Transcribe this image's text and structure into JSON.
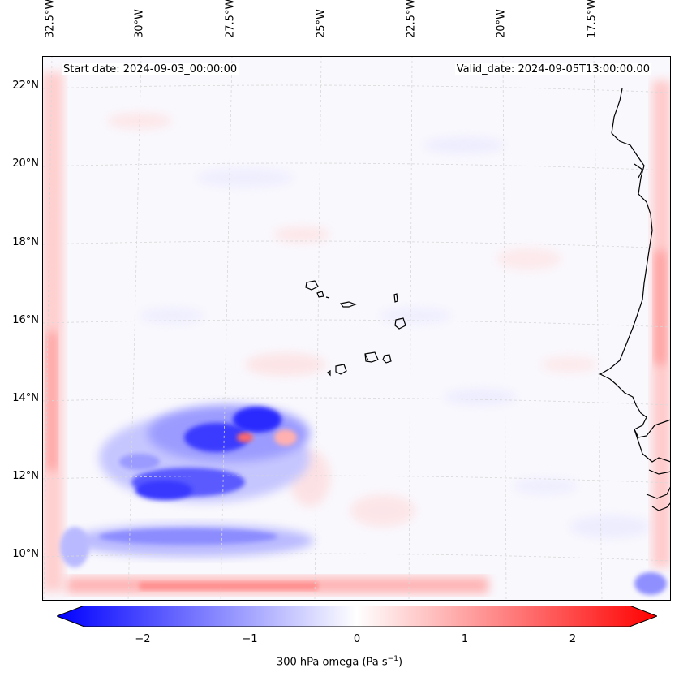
{
  "map": {
    "start_date": "Start date: 2024-09-03_00:00:00",
    "valid_date": "Valid_date: 2024-09-05T13:00:00.00",
    "lon_labels": [
      "32.5°W",
      "30°W",
      "27.5°W",
      "25°W",
      "22.5°W",
      "20°W",
      "17.5°W"
    ],
    "lat_labels": [
      "22°N",
      "20°N",
      "18°N",
      "16°N",
      "14°N",
      "12°N",
      "10°N"
    ],
    "colors": {
      "negative": "#0000ff",
      "neutral": "#ffffff",
      "positive": "#ff0000",
      "coast": "#000000"
    }
  },
  "colorbar": {
    "ticks": [
      "−2",
      "−1",
      "0",
      "1",
      "2"
    ],
    "label_main": "300 hPa omega (Pa s",
    "label_sup": "−1",
    "label_end": ")"
  }
}
